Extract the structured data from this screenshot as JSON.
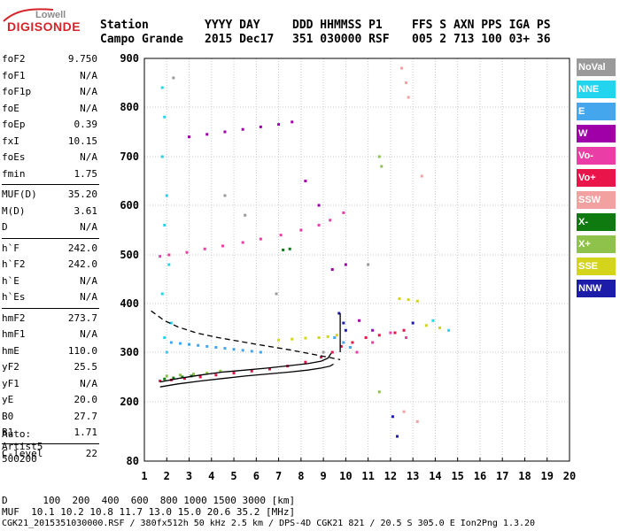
{
  "logo": {
    "brand": "Lowell",
    "product": "DIGISONDE"
  },
  "header": {
    "row1": [
      "Station",
      "YYYY DAY",
      "DDD HHMMSS P1",
      "FFS S AXN PPS IGA PS"
    ],
    "row2": [
      "Campo Grande",
      "2015 Dec17",
      "351 030000 RSF",
      "005 2 713 100 03+ 36"
    ]
  },
  "params": [
    {
      "k": "foF2",
      "v": "9.750"
    },
    {
      "k": "foF1",
      "v": "N/A"
    },
    {
      "k": "foF1p",
      "v": "N/A"
    },
    {
      "k": "foE",
      "v": "N/A"
    },
    {
      "k": "foEp",
      "v": "0.39"
    },
    {
      "k": "fxI",
      "v": "10.15"
    },
    {
      "k": "foEs",
      "v": "N/A"
    },
    {
      "k": "fmin",
      "v": "1.75"
    },
    {
      "k": "MUF(D)",
      "v": "35.20"
    },
    {
      "k": "M(D)",
      "v": "3.61"
    },
    {
      "k": "D",
      "v": "N/A"
    },
    {
      "k": "h`F",
      "v": "242.0"
    },
    {
      "k": "h`F2",
      "v": "242.0"
    },
    {
      "k": "h`E",
      "v": "N/A"
    },
    {
      "k": "h`Es",
      "v": "N/A"
    },
    {
      "k": "hmF2",
      "v": "273.7"
    },
    {
      "k": "hmF1",
      "v": "N/A"
    },
    {
      "k": "hmE",
      "v": "110.0"
    },
    {
      "k": "yF2",
      "v": "25.5"
    },
    {
      "k": "yF1",
      "v": "N/A"
    },
    {
      "k": "yE",
      "v": "20.0"
    },
    {
      "k": "B0",
      "v": "27.7"
    },
    {
      "k": "B1",
      "v": "1.71"
    },
    {
      "k": "C-level",
      "v": "22"
    }
  ],
  "auto": {
    "label": "Auto:",
    "scaler": "Artist5",
    "version": "500200"
  },
  "legend": [
    {
      "label": "NoVal",
      "color": "#9a9a9a"
    },
    {
      "label": "NNE",
      "color": "#22d4ee"
    },
    {
      "label": "E",
      "color": "#44a6ec"
    },
    {
      "label": "W",
      "color": "#a000a8"
    },
    {
      "label": "Vo-",
      "color": "#ea3da6"
    },
    {
      "label": "Vo+",
      "color": "#e8144a"
    },
    {
      "label": "SSW",
      "color": "#f2a0a0"
    },
    {
      "label": "X-",
      "color": "#0f7a0f"
    },
    {
      "label": "X+",
      "color": "#8ec24a"
    },
    {
      "label": "SSE",
      "color": "#d4d41c"
    },
    {
      "label": "NNW",
      "color": "#1c1ca8"
    }
  ],
  "bottom": {
    "line1": "D      100  200  400  600  800 1000 1500 3000 [km]",
    "line2": "MUF  10.1 10.2 10.8 11.7 13.0 15.0 20.6 35.2 [MHz]",
    "line3": "CGK21_2015351030000.RSF / 380fx512h 50 kHz 2.5 km / DPS-4D CGK21 821 / 20.5 S 305.0 E Ion2Png 1.3.20"
  },
  "chart_data": {
    "type": "scatter",
    "x_ticks": [
      1,
      2,
      3,
      4,
      5,
      6,
      7,
      8,
      9,
      10,
      11,
      12,
      13,
      14,
      15,
      16,
      17,
      18,
      19,
      20
    ],
    "y_ticks": [
      80,
      200,
      300,
      400,
      500,
      600,
      700,
      800,
      900
    ],
    "xlim": [
      1,
      20
    ],
    "ylim": [
      80,
      900
    ],
    "y_scale": "nonlinear (virtual height, km)",
    "grid": true,
    "series": [
      {
        "name": "Vo+",
        "color": "#e8144a",
        "x": [
          1.7,
          2.2,
          2.8,
          3.5,
          4.2,
          5.0,
          5.8,
          6.6,
          7.4,
          8.2,
          8.9,
          9.4,
          9.8,
          10.3,
          10.9,
          11.5,
          12.2,
          12.6
        ],
        "y": [
          242,
          244,
          247,
          250,
          254,
          258,
          262,
          266,
          272,
          280,
          290,
          300,
          312,
          320,
          330,
          335,
          340,
          345
        ]
      },
      {
        "name": "Vo-",
        "color": "#ea3da6",
        "x": [
          1.7,
          2.1,
          2.9,
          3.7,
          4.5,
          5.4,
          6.2,
          7.1,
          8.0,
          8.8,
          9.3,
          9.9,
          10.5,
          11.2,
          12.0,
          12.7
        ],
        "y": [
          497,
          500,
          505,
          512,
          518,
          525,
          532,
          540,
          550,
          560,
          570,
          585,
          300,
          320,
          340,
          330
        ]
      },
      {
        "name": "NNE",
        "color": "#22d4ee",
        "x": [
          1.8,
          1.9,
          1.8,
          2.0,
          1.9,
          2.1,
          1.8,
          2.2,
          1.9,
          2.0,
          13.9,
          14.2,
          14.6
        ],
        "y": [
          840,
          780,
          700,
          620,
          560,
          480,
          420,
          360,
          330,
          300,
          365,
          350,
          345
        ]
      },
      {
        "name": "E",
        "color": "#44a6ec",
        "x": [
          2.2,
          2.6,
          3.0,
          3.4,
          3.8,
          4.2,
          4.6,
          5.0,
          5.4,
          5.8,
          6.2,
          9.5,
          9.9,
          10.2
        ],
        "y": [
          320,
          318,
          316,
          314,
          312,
          310,
          308,
          306,
          304,
          302,
          300,
          330,
          320,
          310
        ]
      },
      {
        "name": "W",
        "color": "#a000a8",
        "x": [
          3.0,
          3.8,
          4.6,
          5.4,
          6.2,
          7.0,
          7.6,
          8.2,
          8.8,
          9.4,
          10.0,
          10.6,
          11.2
        ],
        "y": [
          740,
          745,
          750,
          755,
          760,
          765,
          770,
          650,
          600,
          470,
          480,
          365,
          345
        ]
      },
      {
        "name": "SSE",
        "color": "#d4d41c",
        "x": [
          7.0,
          7.6,
          8.2,
          8.8,
          9.2,
          9.6,
          12.4,
          12.8,
          13.2,
          13.6,
          14.2
        ],
        "y": [
          325,
          327,
          329,
          330,
          332,
          335,
          410,
          408,
          405,
          355,
          350
        ]
      },
      {
        "name": "X+",
        "color": "#8ec24a",
        "x": [
          2.0,
          2.6,
          3.2,
          3.8,
          4.4,
          11.5,
          11.6,
          11.5
        ],
        "y": [
          252,
          254,
          256,
          258,
          262,
          700,
          680,
          220
        ]
      },
      {
        "name": "X-",
        "color": "#0f7a0f",
        "x": [
          1.9,
          2.3,
          2.7,
          3.1,
          7.2,
          7.5
        ],
        "y": [
          246,
          248,
          250,
          252,
          510,
          512
        ]
      },
      {
        "name": "NNW",
        "color": "#1c1ca8",
        "x": [
          9.7,
          9.9,
          10.0,
          12.1,
          12.3,
          13.0
        ],
        "y": [
          380,
          360,
          345,
          170,
          130,
          360
        ]
      },
      {
        "name": "SSW",
        "color": "#f2a0a0",
        "x": [
          12.5,
          12.7,
          12.8,
          12.6,
          13.2,
          13.4
        ],
        "y": [
          880,
          850,
          820,
          180,
          160,
          660
        ]
      },
      {
        "name": "NoVal",
        "color": "#9a9a9a",
        "x": [
          2.3,
          4.6,
          6.9,
          9.0,
          11.0,
          5.5
        ],
        "y": [
          860,
          620,
          420,
          300,
          480,
          580
        ]
      }
    ],
    "curves": [
      {
        "name": "profile-dashed",
        "style": "dashed",
        "x": [
          1.3,
          1.9,
          2.5,
          3.3,
          4.3,
          5.3,
          6.3,
          7.5,
          8.5,
          9.2,
          9.75
        ],
        "y": [
          385,
          365,
          352,
          340,
          330,
          322,
          314,
          305,
          296,
          290,
          285
        ]
      },
      {
        "name": "trace-solid",
        "style": "solid",
        "x": [
          1.7,
          2.5,
          3.5,
          4.5,
          5.5,
          6.5,
          7.5,
          8.3,
          8.9,
          9.2,
          9.35
        ],
        "y": [
          240,
          247,
          254,
          260,
          264,
          268,
          273,
          277,
          282,
          288,
          298
        ]
      },
      {
        "name": "lower-solid",
        "style": "solid",
        "x": [
          1.7,
          2.5,
          3.5,
          4.5,
          5.5,
          6.5,
          7.5,
          8.3,
          8.9,
          9.3,
          9.45
        ],
        "y": [
          230,
          236,
          242,
          247,
          252,
          256,
          260,
          264,
          268,
          272,
          276
        ]
      },
      {
        "name": "vertical-foF2",
        "style": "solid",
        "x": [
          9.75,
          9.75
        ],
        "y": [
          300,
          380
        ]
      }
    ]
  }
}
